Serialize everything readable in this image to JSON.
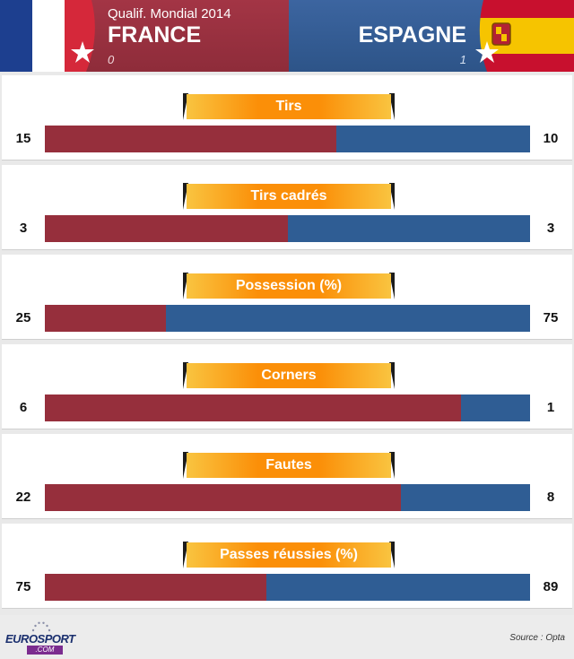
{
  "header": {
    "competition": "Qualif. Mondial 2014",
    "home_team": "FRANCE",
    "away_team": "ESPAGNE",
    "home_score": "0",
    "away_score": "1"
  },
  "colors": {
    "home": "#962f3c",
    "away": "#2f5d94",
    "label_accent": "#fb8f08"
  },
  "stats": [
    {
      "label": "Tirs",
      "home": "15",
      "away": "10",
      "home_share": 0.6
    },
    {
      "label": "Tirs cadrés",
      "home": "3",
      "away": "3",
      "home_share": 0.5
    },
    {
      "label": "Possession (%)",
      "home": "25",
      "away": "75",
      "home_share": 0.25
    },
    {
      "label": "Corners",
      "home": "6",
      "away": "1",
      "home_share": 0.857
    },
    {
      "label": "Fautes",
      "home": "22",
      "away": "8",
      "home_share": 0.733
    },
    {
      "label": "Passes réussies (%)",
      "home": "75",
      "away": "89",
      "home_share": 0.457
    }
  ],
  "footer": {
    "logo_text": "EUROSPORT",
    "logo_domain": ".COM",
    "source": "Source : Opta"
  }
}
